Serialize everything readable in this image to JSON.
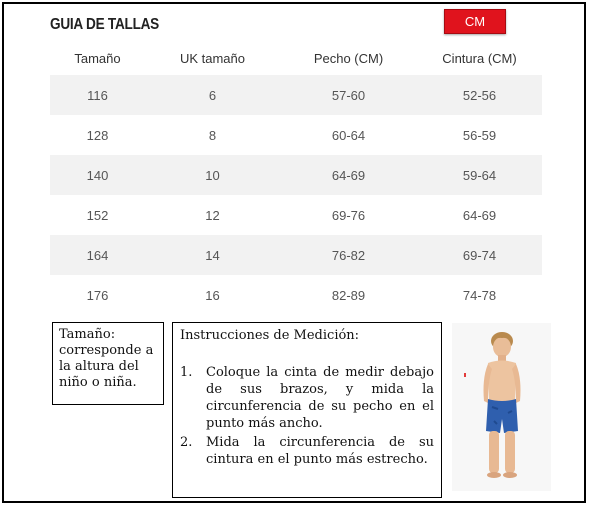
{
  "guide": {
    "title": "GUIA DE TALLAS",
    "unit_button": "CM",
    "accent_color": "#e0131d"
  },
  "table": {
    "headers": [
      "Tamaño",
      "UK tamaño",
      "Pecho (CM)",
      "Cintura (CM)"
    ],
    "rows": [
      [
        "116",
        "6",
        "57-60",
        "52-56"
      ],
      [
        "128",
        "8",
        "60-64",
        "56-59"
      ],
      [
        "140",
        "10",
        "64-69",
        "59-64"
      ],
      [
        "152",
        "12",
        "69-76",
        "64-69"
      ],
      [
        "164",
        "14",
        "76-82",
        "69-74"
      ],
      [
        "176",
        "16",
        "82-89",
        "74-78"
      ]
    ]
  },
  "note": {
    "text": "Tamaño: corresponde a la altura del niño o niña."
  },
  "instructions": {
    "title": "Instrucciones de Medición:",
    "steps": [
      {
        "num": "1.",
        "text": "Coloque la cinta de medir debajo de sus brazos, y mida la circunferencia de su pecho en el punto más ancho."
      },
      {
        "num": "2.",
        "text": "Mida la circunferencia de su cintura en el punto más estrecho."
      }
    ]
  },
  "photo": {
    "icon": "child-model-photo"
  }
}
